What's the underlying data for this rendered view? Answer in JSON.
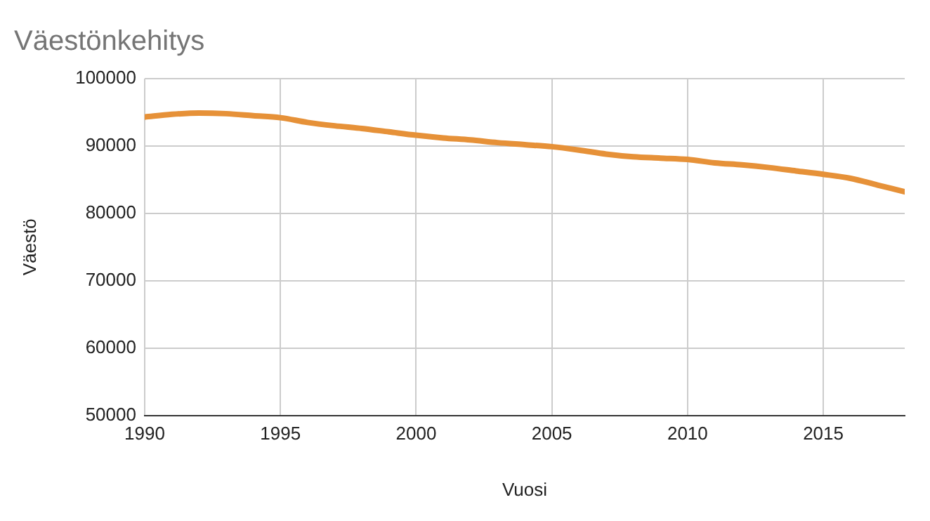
{
  "chart_data": {
    "type": "line",
    "title": "Väestönkehitys",
    "xlabel": "Vuosi",
    "ylabel": "Väestö",
    "x": [
      1990,
      1991,
      1992,
      1993,
      1994,
      1995,
      1996,
      1997,
      1998,
      1999,
      2000,
      2001,
      2002,
      2003,
      2004,
      2005,
      2006,
      2007,
      2008,
      2009,
      2010,
      2011,
      2012,
      2013,
      2014,
      2015,
      2016,
      2017,
      2018
    ],
    "series": [
      {
        "color": "#e69138",
        "values": [
          94300,
          94700,
          94900,
          94800,
          94500,
          94200,
          93500,
          93000,
          92600,
          92100,
          91600,
          91200,
          90900,
          90500,
          90200,
          89900,
          89400,
          88800,
          88400,
          88200,
          88000,
          87500,
          87200,
          86800,
          86300,
          85800,
          85200,
          84200,
          83200
        ]
      }
    ],
    "xlim": [
      1990,
      2018
    ],
    "xticks": [
      1990,
      1995,
      2000,
      2005,
      2010,
      2015
    ],
    "ylim": [
      50000,
      100000
    ],
    "yticks": [
      50000,
      60000,
      70000,
      80000,
      90000,
      100000
    ],
    "grid": true,
    "legend": false,
    "marker": "none",
    "line_style": "solid"
  }
}
